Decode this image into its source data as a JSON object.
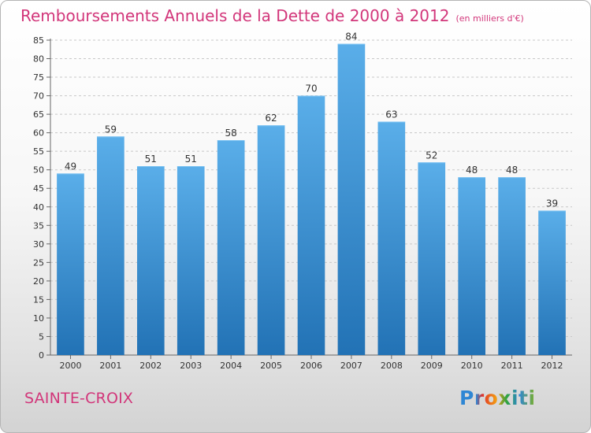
{
  "chart_title": "Remboursements Annuels de la Dette de 2000 à 2012",
  "chart_subtitle": "(en milliers d'€)",
  "commune": "SAINTE-CROIX",
  "logo": "Proxiti",
  "colors": {
    "accent": "#d2367a",
    "bar_top": "#5aaee9",
    "bar_bottom": "#2272b5"
  },
  "chart_data": {
    "type": "bar",
    "title": "Remboursements Annuels de la Dette de 2000 à 2012",
    "subtitle": "(en milliers d'€)",
    "categories": [
      "2000",
      "2001",
      "2002",
      "2003",
      "2004",
      "2005",
      "2006",
      "2007",
      "2008",
      "2009",
      "2010",
      "2011",
      "2012"
    ],
    "values": [
      49,
      59,
      51,
      51,
      58,
      62,
      70,
      84,
      63,
      52,
      48,
      48,
      39
    ],
    "ylim": [
      0,
      85
    ],
    "yticks": [
      0,
      5,
      10,
      15,
      20,
      25,
      30,
      35,
      40,
      45,
      50,
      55,
      60,
      65,
      70,
      75,
      80,
      85
    ],
    "grid": "horizontal dashed",
    "legend": "none",
    "data_labels": true
  }
}
